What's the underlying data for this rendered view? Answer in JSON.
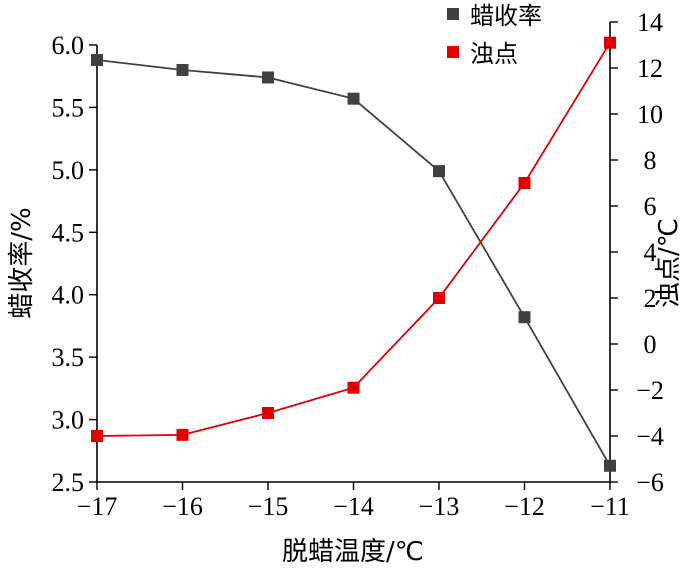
{
  "chart_data": {
    "type": "line",
    "x": [
      -17,
      -16,
      -15,
      -14,
      -13,
      -12,
      -11
    ],
    "xlabel": "脱蜡温度/℃",
    "xlim": [
      -17,
      -11
    ],
    "xticks": [
      "−17",
      "−16",
      "−15",
      "−14",
      "−13",
      "−12",
      "−11"
    ],
    "y_left": {
      "label": "蜡收率/%",
      "lim": [
        2.5,
        6.0
      ],
      "ticks": [
        "2.5",
        "3.0",
        "3.5",
        "4.0",
        "4.5",
        "5.0",
        "5.5",
        "6.0"
      ]
    },
    "y_right": {
      "label": "浊点/℃",
      "lim": [
        -6,
        14
      ],
      "ticks": [
        "−6",
        "−4",
        "−2",
        "0",
        "2",
        "4",
        "6",
        "8",
        "10",
        "12",
        "14"
      ]
    },
    "series": [
      {
        "name": "蜡收率",
        "axis": "left",
        "color": "#404040",
        "marker": "square",
        "values": [
          5.88,
          5.8,
          5.74,
          5.57,
          4.99,
          3.82,
          2.63
        ]
      },
      {
        "name": "浊点",
        "axis": "right",
        "color": "#e00000",
        "marker": "square",
        "values": [
          -4.0,
          -3.95,
          -3.0,
          -1.9,
          2.0,
          7.0,
          13.1
        ]
      }
    ],
    "legend": {
      "position": "top-right",
      "entries": [
        "蜡收率",
        "浊点"
      ]
    },
    "grid": false
  }
}
